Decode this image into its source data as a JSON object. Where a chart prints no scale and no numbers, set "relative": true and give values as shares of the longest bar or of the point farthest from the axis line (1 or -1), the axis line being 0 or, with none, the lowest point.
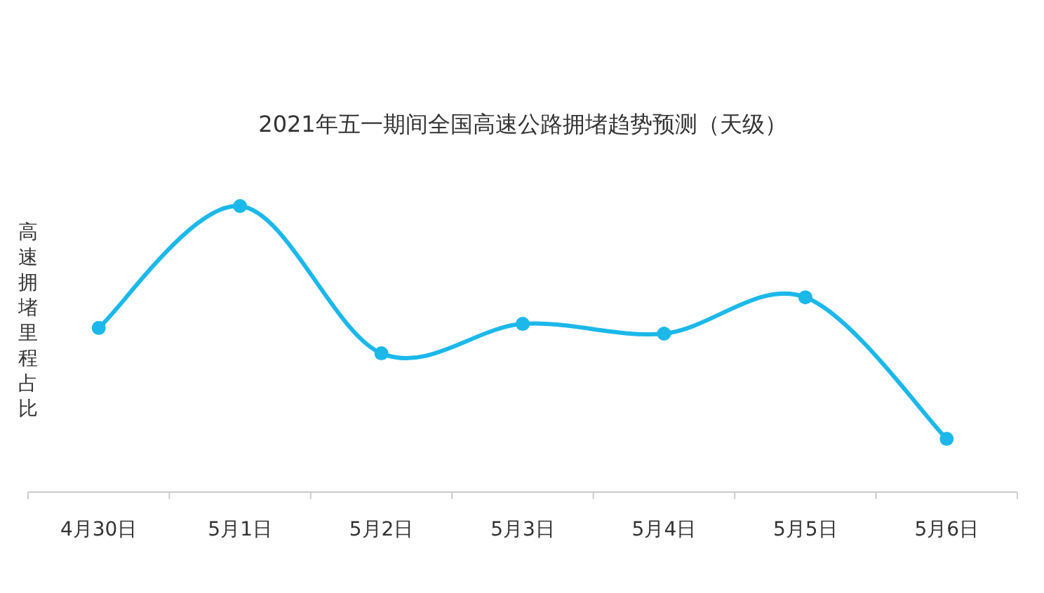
{
  "chart_data": {
    "type": "line",
    "title": "2021年五一期间全国高速公路拥堵趋势预测（天级）",
    "ylabel": "高速拥堵里程占比",
    "categories": [
      "4月30日",
      "5月1日",
      "5月2日",
      "5月3日",
      "5月4日",
      "5月5日",
      "5月6日"
    ],
    "values": [
      0.574,
      1,
      0.485,
      0.588,
      0.554,
      0.681,
      0.186
    ],
    "color": "#1cb8ea",
    "relative": true,
    "marker": "circle",
    "line_style": "solid"
  }
}
